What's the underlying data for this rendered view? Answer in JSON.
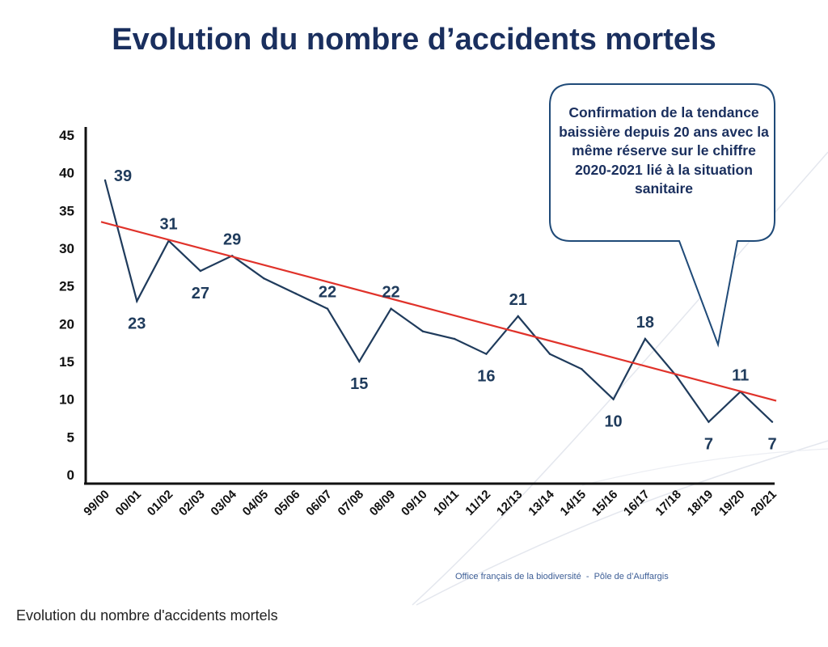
{
  "page_title": "Evolution du nombre d’accidents mortels",
  "chart_data": {
    "type": "line",
    "title": "Evolution du nombre d’accidents mortels",
    "xlabel": "",
    "ylabel": "",
    "ylim": [
      0,
      45
    ],
    "yticks": [
      0,
      5,
      10,
      15,
      20,
      25,
      30,
      35,
      40,
      45
    ],
    "grid": false,
    "categories": [
      "99/00",
      "00/01",
      "01/02",
      "02/03",
      "03/04",
      "04/05",
      "05/06",
      "06/07",
      "07/08",
      "08/09",
      "09/10",
      "10/11",
      "11/12",
      "12/13",
      "13/14",
      "14/15",
      "15/16",
      "16/17",
      "17/18",
      "18/19",
      "19/20",
      "20/21"
    ],
    "series": [
      {
        "values": [
          39,
          23,
          31,
          27,
          29,
          26,
          24,
          22,
          15,
          22,
          19,
          18,
          16,
          21,
          16,
          14,
          10,
          18,
          13,
          7,
          11,
          7
        ],
        "labels": {
          "0": "39",
          "1": "23",
          "2": "31",
          "3": "27",
          "4": "29",
          "7": "22",
          "8": "15",
          "9": "22",
          "12": "16",
          "13": "21",
          "16": "10",
          "17": "18",
          "19": "7",
          "20": "11",
          "21": "7"
        }
      }
    ],
    "trendline": {
      "start": 33.5,
      "end": 9.8
    },
    "annotation": "Confirmation de la tendance baissière depuis 20 ans avec la même réserve sur le chiffre 2020-2021 lié à la situation sanitaire"
  },
  "colors": {
    "line": "#1f3b5c",
    "trend": "#e0322a",
    "title": "#1a2f5e",
    "callout_border": "#1f4a78",
    "footer": "#3d5e96"
  },
  "footer": "Office français de la biodiversité  -  Pôle de d’Auffargis",
  "caption": "Evolution du nombre d'accidents mortels"
}
